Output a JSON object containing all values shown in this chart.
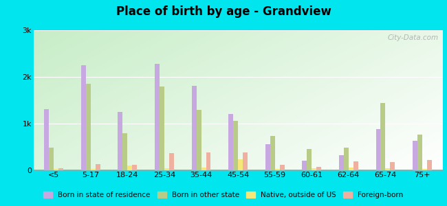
{
  "title": "Place of birth by age - Grandview",
  "categories": [
    "<5",
    "5-17",
    "18-24",
    "25-34",
    "35-44",
    "45-54",
    "55-59",
    "60-61",
    "62-64",
    "65-74",
    "75+"
  ],
  "series": {
    "Born in state of residence": [
      1300,
      2250,
      1250,
      2270,
      1800,
      1200,
      550,
      200,
      320,
      880,
      620
    ],
    "Born in other state": [
      480,
      1850,
      780,
      1780,
      1280,
      1050,
      730,
      450,
      480,
      1430,
      760
    ],
    "Native, outside of US": [
      15,
      25,
      100,
      40,
      50,
      230,
      20,
      40,
      45,
      30,
      25
    ],
    "Foreign-born": [
      35,
      130,
      115,
      360,
      370,
      370,
      110,
      70,
      190,
      165,
      210
    ]
  },
  "colors": {
    "Born in state of residence": "#c8a8e0",
    "Born in other state": "#b8cc88",
    "Native, outside of US": "#f5e878",
    "Foreign-born": "#f0b0a0"
  },
  "ylim": [
    0,
    3000
  ],
  "yticks": [
    0,
    1000,
    2000,
    3000
  ],
  "ytick_labels": [
    "0",
    "1k",
    "2k",
    "3k"
  ],
  "bg_color_left": "#c8e8c0",
  "bg_color_right": "#f0f8f0",
  "outer_background": "#00e5ee",
  "watermark": "City-Data.com"
}
